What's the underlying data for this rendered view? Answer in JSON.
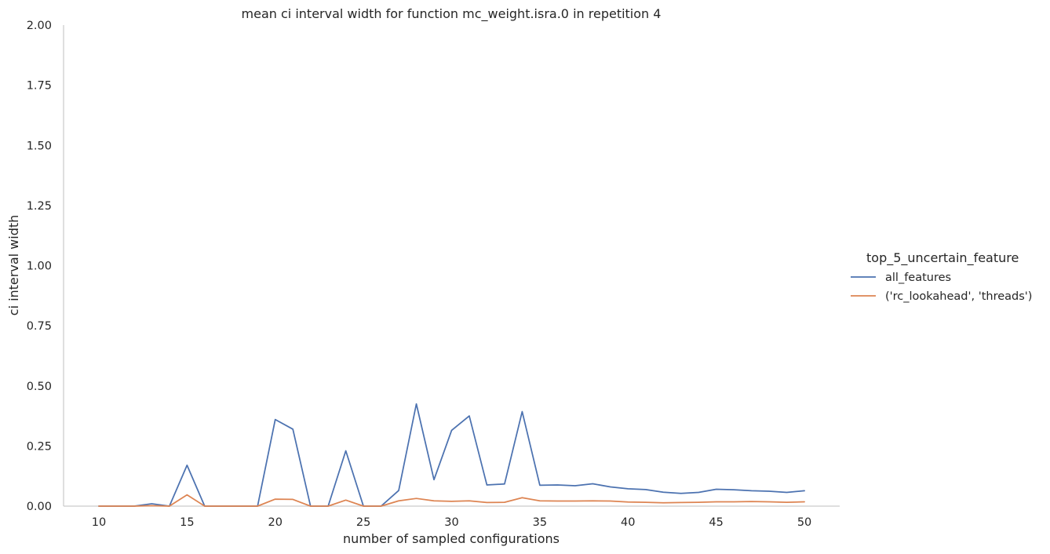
{
  "chart_data": {
    "type": "line",
    "title": "mean ci interval width for function mc_weight.isra.0 in repetition 4",
    "xlabel": "number of sampled configurations",
    "ylabel": "ci interval width",
    "xlim": [
      8,
      52
    ],
    "ylim": [
      0,
      2
    ],
    "xticks": [
      10,
      15,
      20,
      25,
      30,
      35,
      40,
      45,
      50
    ],
    "yticks": [
      0,
      0.25,
      0.5,
      0.75,
      1.0,
      1.25,
      1.5,
      1.75,
      2.0
    ],
    "ytick_labels": [
      "0.00",
      "0.25",
      "0.50",
      "0.75",
      "1.00",
      "1.25",
      "1.50",
      "1.75",
      "2.00"
    ],
    "grid": false,
    "legend_title": "top_5_uncertain_feature",
    "legend_position": "right",
    "x": [
      10,
      11,
      12,
      13,
      14,
      15,
      16,
      17,
      18,
      19,
      20,
      21,
      22,
      23,
      24,
      25,
      26,
      27,
      28,
      29,
      30,
      31,
      32,
      33,
      34,
      35,
      36,
      37,
      38,
      39,
      40,
      41,
      42,
      43,
      44,
      45,
      46,
      47,
      48,
      49,
      50
    ],
    "series": [
      {
        "name": "all_features",
        "color": "#4c72b0",
        "values": [
          0,
          0,
          0,
          0.01,
          0,
          0.17,
          0,
          0,
          0,
          0,
          0.36,
          0.32,
          0,
          0,
          0.23,
          0,
          0,
          0.065,
          0.425,
          0.11,
          0.315,
          0.375,
          0.088,
          0.092,
          0.393,
          0.087,
          0.088,
          0.085,
          0.093,
          0.08,
          0.072,
          0.069,
          0.058,
          0.053,
          0.057,
          0.07,
          0.068,
          0.064,
          0.062,
          0.057,
          0.064
        ]
      },
      {
        "name": "('rc_lookahead', 'threads')",
        "color": "#dd8452",
        "values": [
          0,
          0,
          0,
          0.002,
          0,
          0.047,
          0,
          0,
          0,
          0,
          0.029,
          0.028,
          0,
          0,
          0.025,
          0,
          0,
          0.022,
          0.032,
          0.022,
          0.02,
          0.022,
          0.015,
          0.016,
          0.035,
          0.022,
          0.021,
          0.021,
          0.022,
          0.021,
          0.017,
          0.016,
          0.014,
          0.015,
          0.016,
          0.018,
          0.018,
          0.019,
          0.018,
          0.016,
          0.018
        ]
      }
    ]
  }
}
